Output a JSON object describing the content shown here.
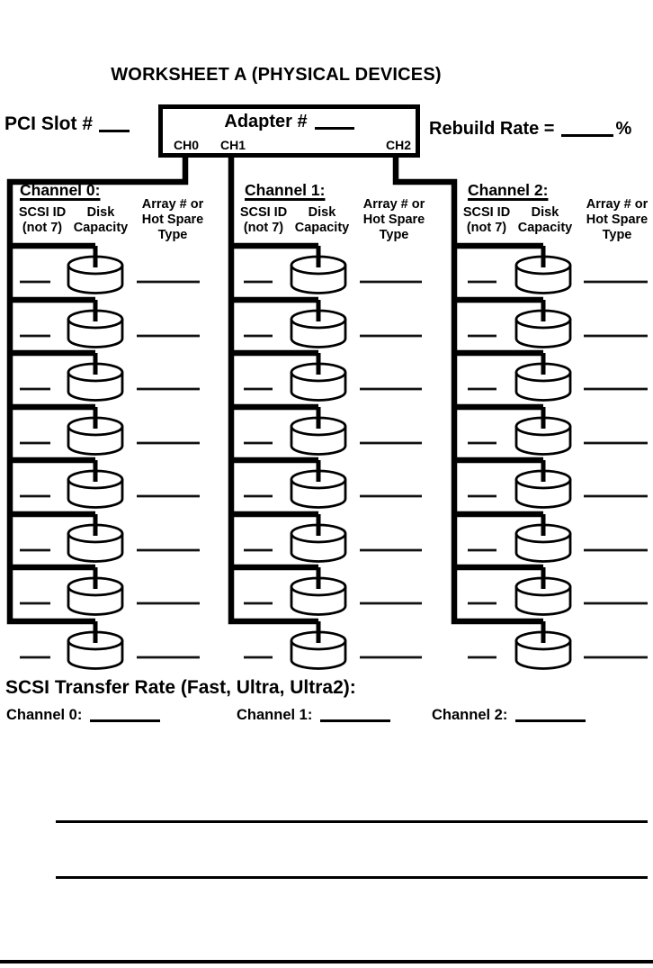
{
  "title": "WORKSHEET A (PHYSICAL DEVICES)",
  "pci_slot": {
    "label": "PCI Slot  #",
    "value": ""
  },
  "adapter": {
    "label": "Adapter #",
    "value": "",
    "ports": [
      "CH0",
      "CH1",
      "CH2"
    ]
  },
  "rebuild_rate": {
    "label": "Rebuild Rate =",
    "value": "",
    "unit": "%"
  },
  "channels": [
    {
      "title": "Channel 0:",
      "header": {
        "scsi_id": [
          "SCSI ID",
          "(not 7)"
        ],
        "disk": [
          "Disk",
          "Capacity"
        ],
        "array": [
          "Array # or",
          "Hot Spare",
          "Type"
        ]
      },
      "device_rows": 8,
      "device_icon": "disk-cylinder-icon",
      "device_fields": {
        "scsi_id": "",
        "disk_capacity": "",
        "array_or_hot_spare": ""
      }
    },
    {
      "title": "Channel 1:",
      "header": {
        "scsi_id": [
          "SCSI ID",
          "(not 7)"
        ],
        "disk": [
          "Disk",
          "Capacity"
        ],
        "array": [
          "Array # or",
          "Hot Spare",
          "Type"
        ]
      },
      "device_rows": 8,
      "device_icon": "disk-cylinder-icon",
      "device_fields": {
        "scsi_id": "",
        "disk_capacity": "",
        "array_or_hot_spare": ""
      }
    },
    {
      "title": "Channel 2:",
      "header": {
        "scsi_id": [
          "SCSI ID",
          "(not 7)"
        ],
        "disk": [
          "Disk",
          "Capacity"
        ],
        "array": [
          "Array # or",
          "Hot Spare",
          "Type"
        ]
      },
      "device_rows": 8,
      "device_icon": "disk-cylinder-icon",
      "device_fields": {
        "scsi_id": "",
        "disk_capacity": "",
        "array_or_hot_spare": ""
      }
    }
  ],
  "transfer_rate": {
    "title": "SCSI Transfer Rate (Fast, Ultra, Ultra2):",
    "entries": [
      {
        "label": "Channel 0:",
        "value": ""
      },
      {
        "label": "Channel 1:",
        "value": ""
      },
      {
        "label": "Channel 2:",
        "value": ""
      }
    ]
  }
}
